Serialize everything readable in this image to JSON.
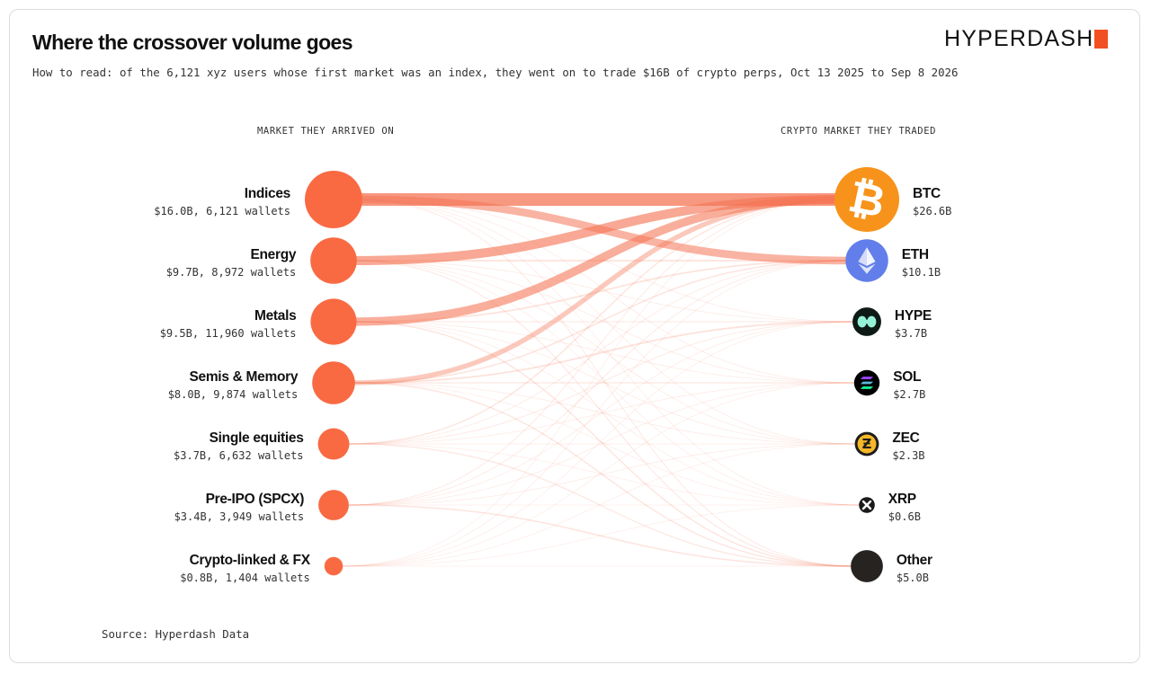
{
  "header": {
    "title": "Where the crossover volume goes",
    "subtitle": "How to read: of the 6,121 xyz users whose first market was an index, they went on to trade $16B of crypto perps, Oct 13 2025 to Sep 8 2026",
    "brand": "HYPERDASH"
  },
  "footer": {
    "source": "Source: Hyperdash Data"
  },
  "colors": {
    "node": "#f96a43",
    "flow": "#f47555",
    "brand_accent": "#f25022",
    "btc": "#f7931a",
    "eth": "#627eea",
    "hype": "#0e1a16",
    "other": "#262321"
  },
  "chart_data": {
    "type": "sankey",
    "left_header": "MARKET THEY ARRIVED ON",
    "right_header": "CRYPTO MARKET THEY TRADED",
    "sources": [
      {
        "name": "Indices",
        "value_text": "$16.0B, 6,121 wallets",
        "volume_b": 16.0,
        "wallets": 6121
      },
      {
        "name": "Energy",
        "value_text": "$9.7B, 8,972 wallets",
        "volume_b": 9.7,
        "wallets": 8972
      },
      {
        "name": "Metals",
        "value_text": "$9.5B, 11,960 wallets",
        "volume_b": 9.5,
        "wallets": 11960
      },
      {
        "name": "Semis & Memory",
        "value_text": "$8.0B, 9,874 wallets",
        "volume_b": 8.0,
        "wallets": 9874
      },
      {
        "name": "Single equities",
        "value_text": "$3.7B, 6,632 wallets",
        "volume_b": 3.7,
        "wallets": 6632
      },
      {
        "name": "Pre-IPO (SPCX)",
        "value_text": "$3.4B, 3,949 wallets",
        "volume_b": 3.4,
        "wallets": 3949
      },
      {
        "name": "Crypto-linked & FX",
        "value_text": "$0.8B, 1,404 wallets",
        "volume_b": 0.8,
        "wallets": 1404
      }
    ],
    "targets": [
      {
        "name": "BTC",
        "value_text": "$26.6B",
        "volume_b": 26.6,
        "icon": "btc-icon"
      },
      {
        "name": "ETH",
        "value_text": "$10.1B",
        "volume_b": 10.1,
        "icon": "eth-icon"
      },
      {
        "name": "HYPE",
        "value_text": "$3.7B",
        "volume_b": 3.7,
        "icon": "hype-icon"
      },
      {
        "name": "SOL",
        "value_text": "$2.7B",
        "volume_b": 2.7,
        "icon": "sol-icon"
      },
      {
        "name": "ZEC",
        "value_text": "$2.3B",
        "volume_b": 2.3,
        "icon": "zec-icon"
      },
      {
        "name": "XRP",
        "value_text": "$0.6B",
        "volume_b": 0.6,
        "icon": "xrp-icon"
      },
      {
        "name": "Other",
        "value_text": "$5.0B",
        "volume_b": 5.0,
        "icon": "other-icon"
      }
    ],
    "flows": [
      [
        9.0,
        5.5,
        0.3,
        0.3,
        0.2,
        0.1,
        0.6
      ],
      [
        6.5,
        1.2,
        0.5,
        0.4,
        0.3,
        0.1,
        0.7
      ],
      [
        6.0,
        1.1,
        0.7,
        0.4,
        0.3,
        0.1,
        0.9
      ],
      [
        3.5,
        1.0,
        1.2,
        0.8,
        0.5,
        0.1,
        0.9
      ],
      [
        0.9,
        0.5,
        0.6,
        0.4,
        0.4,
        0.1,
        0.8
      ],
      [
        0.6,
        0.6,
        0.3,
        0.3,
        0.5,
        0.1,
        1.0
      ],
      [
        0.1,
        0.2,
        0.1,
        0.1,
        0.1,
        0.1,
        0.1
      ]
    ]
  }
}
